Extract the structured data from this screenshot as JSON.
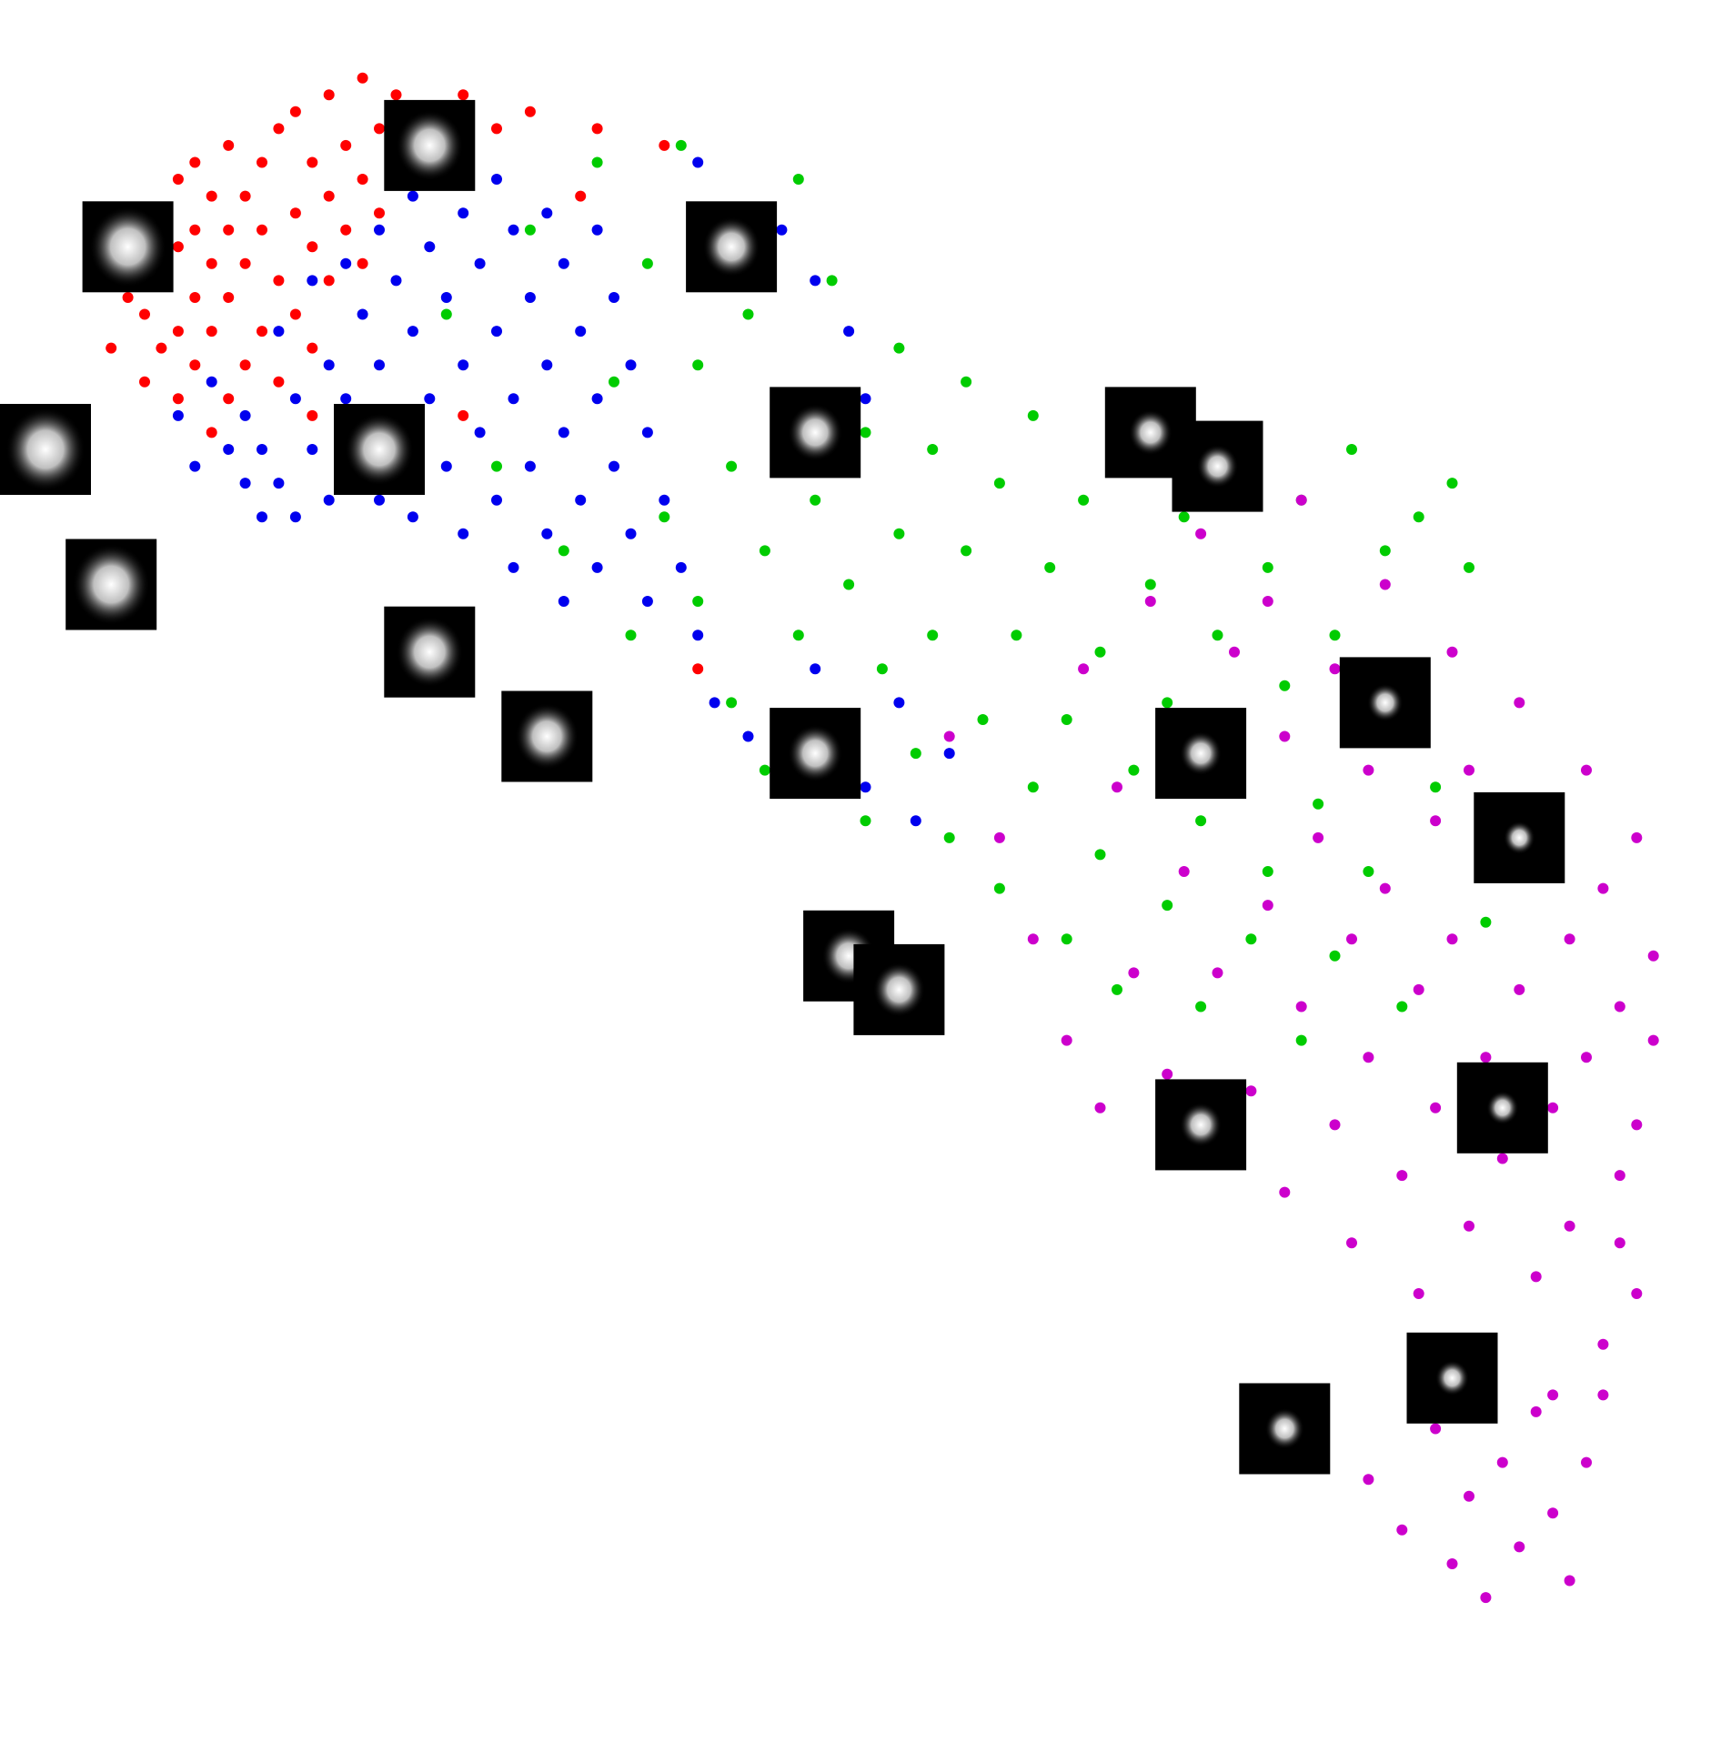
{
  "chart_data": {
    "type": "scatter",
    "title": "",
    "xlabel": "",
    "ylabel": "",
    "axes_visible": false,
    "grid": false,
    "legend": "none",
    "xlim": [
      0,
      1
    ],
    "ylim": [
      0,
      1
    ],
    "series": [
      {
        "color": "#ff0000",
        "points": [
          [
            0.05,
            0.81
          ],
          [
            0.06,
            0.84
          ],
          [
            0.06,
            0.88
          ],
          [
            0.07,
            0.79
          ],
          [
            0.07,
            0.83
          ],
          [
            0.07,
            0.86
          ],
          [
            0.08,
            0.81
          ],
          [
            0.08,
            0.85
          ],
          [
            0.08,
            0.89
          ],
          [
            0.09,
            0.78
          ],
          [
            0.09,
            0.82
          ],
          [
            0.09,
            0.87
          ],
          [
            0.09,
            0.91
          ],
          [
            0.1,
            0.8
          ],
          [
            0.1,
            0.84
          ],
          [
            0.1,
            0.88
          ],
          [
            0.1,
            0.92
          ],
          [
            0.11,
            0.76
          ],
          [
            0.11,
            0.82
          ],
          [
            0.11,
            0.86
          ],
          [
            0.11,
            0.9
          ],
          [
            0.12,
            0.78
          ],
          [
            0.12,
            0.84
          ],
          [
            0.12,
            0.88
          ],
          [
            0.12,
            0.93
          ],
          [
            0.13,
            0.8
          ],
          [
            0.13,
            0.86
          ],
          [
            0.13,
            0.9
          ],
          [
            0.14,
            0.82
          ],
          [
            0.14,
            0.88
          ],
          [
            0.14,
            0.92
          ],
          [
            0.15,
            0.79
          ],
          [
            0.15,
            0.85
          ],
          [
            0.15,
            0.94
          ],
          [
            0.16,
            0.83
          ],
          [
            0.16,
            0.89
          ],
          [
            0.16,
            0.95
          ],
          [
            0.17,
            0.81
          ],
          [
            0.17,
            0.87
          ],
          [
            0.17,
            0.92
          ],
          [
            0.18,
            0.85
          ],
          [
            0.18,
            0.9
          ],
          [
            0.18,
            0.96
          ],
          [
            0.19,
            0.88
          ],
          [
            0.19,
            0.93
          ],
          [
            0.2,
            0.86
          ],
          [
            0.2,
            0.91
          ],
          [
            0.2,
            0.97
          ],
          [
            0.21,
            0.89
          ],
          [
            0.21,
            0.94
          ],
          [
            0.22,
            0.92
          ],
          [
            0.22,
            0.96
          ],
          [
            0.23,
            0.95
          ],
          [
            0.24,
            0.93
          ],
          [
            0.25,
            0.95
          ],
          [
            0.26,
            0.96
          ],
          [
            0.28,
            0.94
          ],
          [
            0.3,
            0.95
          ],
          [
            0.34,
            0.94
          ],
          [
            0.38,
            0.93
          ],
          [
            0.26,
            0.77
          ],
          [
            0.4,
            0.62
          ],
          [
            0.19,
            0.75
          ],
          [
            0.17,
            0.77
          ],
          [
            0.33,
            0.9
          ]
        ]
      },
      {
        "color": "#0000ee",
        "points": [
          [
            0.09,
            0.77
          ],
          [
            0.1,
            0.74
          ],
          [
            0.11,
            0.79
          ],
          [
            0.12,
            0.75
          ],
          [
            0.13,
            0.73
          ],
          [
            0.13,
            0.77
          ],
          [
            0.14,
            0.71
          ],
          [
            0.14,
            0.75
          ],
          [
            0.15,
            0.82
          ],
          [
            0.15,
            0.73
          ],
          [
            0.16,
            0.78
          ],
          [
            0.16,
            0.71
          ],
          [
            0.17,
            0.85
          ],
          [
            0.17,
            0.75
          ],
          [
            0.18,
            0.8
          ],
          [
            0.18,
            0.72
          ],
          [
            0.19,
            0.86
          ],
          [
            0.19,
            0.78
          ],
          [
            0.2,
            0.83
          ],
          [
            0.2,
            0.74
          ],
          [
            0.21,
            0.88
          ],
          [
            0.21,
            0.8
          ],
          [
            0.21,
            0.72
          ],
          [
            0.22,
            0.85
          ],
          [
            0.22,
            0.76
          ],
          [
            0.23,
            0.9
          ],
          [
            0.23,
            0.82
          ],
          [
            0.23,
            0.71
          ],
          [
            0.24,
            0.87
          ],
          [
            0.24,
            0.78
          ],
          [
            0.25,
            0.92
          ],
          [
            0.25,
            0.84
          ],
          [
            0.25,
            0.74
          ],
          [
            0.26,
            0.89
          ],
          [
            0.26,
            0.8
          ],
          [
            0.26,
            0.7
          ],
          [
            0.27,
            0.86
          ],
          [
            0.27,
            0.76
          ],
          [
            0.28,
            0.91
          ],
          [
            0.28,
            0.82
          ],
          [
            0.28,
            0.72
          ],
          [
            0.29,
            0.88
          ],
          [
            0.29,
            0.78
          ],
          [
            0.29,
            0.68
          ],
          [
            0.3,
            0.84
          ],
          [
            0.3,
            0.74
          ],
          [
            0.31,
            0.89
          ],
          [
            0.31,
            0.8
          ],
          [
            0.31,
            0.7
          ],
          [
            0.32,
            0.86
          ],
          [
            0.32,
            0.76
          ],
          [
            0.32,
            0.66
          ],
          [
            0.33,
            0.82
          ],
          [
            0.33,
            0.72
          ],
          [
            0.34,
            0.88
          ],
          [
            0.34,
            0.78
          ],
          [
            0.34,
            0.68
          ],
          [
            0.35,
            0.84
          ],
          [
            0.35,
            0.74
          ],
          [
            0.36,
            0.8
          ],
          [
            0.36,
            0.7
          ],
          [
            0.37,
            0.76
          ],
          [
            0.37,
            0.66
          ],
          [
            0.38,
            0.72
          ],
          [
            0.39,
            0.68
          ],
          [
            0.4,
            0.64
          ],
          [
            0.41,
            0.6
          ],
          [
            0.43,
            0.58
          ],
          [
            0.45,
            0.56
          ],
          [
            0.47,
            0.62
          ],
          [
            0.48,
            0.58
          ],
          [
            0.5,
            0.55
          ],
          [
            0.52,
            0.6
          ],
          [
            0.53,
            0.53
          ],
          [
            0.55,
            0.57
          ],
          [
            0.45,
            0.88
          ],
          [
            0.47,
            0.85
          ],
          [
            0.49,
            0.82
          ],
          [
            0.5,
            0.78
          ],
          [
            0.4,
            0.92
          ]
        ]
      },
      {
        "color": "#00cc00",
        "points": [
          [
            0.25,
            0.83
          ],
          [
            0.28,
            0.74
          ],
          [
            0.3,
            0.88
          ],
          [
            0.32,
            0.69
          ],
          [
            0.34,
            0.92
          ],
          [
            0.35,
            0.79
          ],
          [
            0.36,
            0.64
          ],
          [
            0.37,
            0.86
          ],
          [
            0.38,
            0.71
          ],
          [
            0.39,
            0.93
          ],
          [
            0.4,
            0.8
          ],
          [
            0.4,
            0.66
          ],
          [
            0.41,
            0.88
          ],
          [
            0.42,
            0.74
          ],
          [
            0.42,
            0.6
          ],
          [
            0.43,
            0.83
          ],
          [
            0.44,
            0.69
          ],
          [
            0.44,
            0.56
          ],
          [
            0.45,
            0.78
          ],
          [
            0.46,
            0.64
          ],
          [
            0.46,
            0.91
          ],
          [
            0.47,
            0.72
          ],
          [
            0.48,
            0.58
          ],
          [
            0.48,
            0.85
          ],
          [
            0.49,
            0.67
          ],
          [
            0.5,
            0.76
          ],
          [
            0.5,
            0.53
          ],
          [
            0.51,
            0.62
          ],
          [
            0.52,
            0.81
          ],
          [
            0.52,
            0.7
          ],
          [
            0.53,
            0.57
          ],
          [
            0.54,
            0.75
          ],
          [
            0.54,
            0.64
          ],
          [
            0.55,
            0.52
          ],
          [
            0.56,
            0.69
          ],
          [
            0.56,
            0.79
          ],
          [
            0.57,
            0.59
          ],
          [
            0.58,
            0.73
          ],
          [
            0.58,
            0.49
          ],
          [
            0.59,
            0.64
          ],
          [
            0.6,
            0.77
          ],
          [
            0.6,
            0.55
          ],
          [
            0.61,
            0.68
          ],
          [
            0.62,
            0.46
          ],
          [
            0.62,
            0.59
          ],
          [
            0.63,
            0.72
          ],
          [
            0.64,
            0.51
          ],
          [
            0.64,
            0.63
          ],
          [
            0.65,
            0.43
          ],
          [
            0.66,
            0.56
          ],
          [
            0.66,
            0.75
          ],
          [
            0.67,
            0.67
          ],
          [
            0.68,
            0.48
          ],
          [
            0.68,
            0.6
          ],
          [
            0.69,
            0.71
          ],
          [
            0.7,
            0.53
          ],
          [
            0.7,
            0.42
          ],
          [
            0.71,
            0.64
          ],
          [
            0.72,
            0.74
          ],
          [
            0.72,
            0.57
          ],
          [
            0.73,
            0.46
          ],
          [
            0.74,
            0.68
          ],
          [
            0.74,
            0.5
          ],
          [
            0.75,
            0.61
          ],
          [
            0.76,
            0.4
          ],
          [
            0.76,
            0.72
          ],
          [
            0.77,
            0.54
          ],
          [
            0.78,
            0.64
          ],
          [
            0.78,
            0.45
          ],
          [
            0.79,
            0.75
          ],
          [
            0.79,
            0.58
          ],
          [
            0.8,
            0.5
          ],
          [
            0.81,
            0.69
          ],
          [
            0.81,
            0.62
          ],
          [
            0.82,
            0.42
          ],
          [
            0.83,
            0.71
          ],
          [
            0.84,
            0.55
          ],
          [
            0.85,
            0.73
          ],
          [
            0.86,
            0.68
          ],
          [
            0.87,
            0.47
          ]
        ]
      },
      {
        "color": "#cc00cc",
        "points": [
          [
            0.55,
            0.58
          ],
          [
            0.58,
            0.52
          ],
          [
            0.6,
            0.46
          ],
          [
            0.62,
            0.4
          ],
          [
            0.63,
            0.62
          ],
          [
            0.64,
            0.36
          ],
          [
            0.65,
            0.55
          ],
          [
            0.66,
            0.44
          ],
          [
            0.67,
            0.66
          ],
          [
            0.68,
            0.38
          ],
          [
            0.68,
            0.59
          ],
          [
            0.69,
            0.5
          ],
          [
            0.7,
            0.33
          ],
          [
            0.7,
            0.7
          ],
          [
            0.71,
            0.44
          ],
          [
            0.72,
            0.63
          ],
          [
            0.72,
            0.55
          ],
          [
            0.73,
            0.37
          ],
          [
            0.74,
            0.48
          ],
          [
            0.74,
            0.66
          ],
          [
            0.75,
            0.31
          ],
          [
            0.75,
            0.58
          ],
          [
            0.76,
            0.42
          ],
          [
            0.76,
            0.72
          ],
          [
            0.77,
            0.52
          ],
          [
            0.78,
            0.35
          ],
          [
            0.78,
            0.62
          ],
          [
            0.79,
            0.46
          ],
          [
            0.79,
            0.28
          ],
          [
            0.8,
            0.56
          ],
          [
            0.8,
            0.39
          ],
          [
            0.81,
            0.67
          ],
          [
            0.81,
            0.49
          ],
          [
            0.82,
            0.32
          ],
          [
            0.82,
            0.59
          ],
          [
            0.83,
            0.43
          ],
          [
            0.83,
            0.25
          ],
          [
            0.84,
            0.53
          ],
          [
            0.84,
            0.36
          ],
          [
            0.85,
            0.63
          ],
          [
            0.85,
            0.46
          ],
          [
            0.86,
            0.29
          ],
          [
            0.86,
            0.56
          ],
          [
            0.87,
            0.39
          ],
          [
            0.87,
            0.22
          ],
          [
            0.88,
            0.5
          ],
          [
            0.88,
            0.33
          ],
          [
            0.89,
            0.6
          ],
          [
            0.89,
            0.43
          ],
          [
            0.9,
            0.26
          ],
          [
            0.9,
            0.53
          ],
          [
            0.91,
            0.36
          ],
          [
            0.91,
            0.19
          ],
          [
            0.92,
            0.46
          ],
          [
            0.92,
            0.29
          ],
          [
            0.93,
            0.56
          ],
          [
            0.93,
            0.39
          ],
          [
            0.94,
            0.22
          ],
          [
            0.94,
            0.49
          ],
          [
            0.95,
            0.32
          ],
          [
            0.95,
            0.42
          ],
          [
            0.96,
            0.25
          ],
          [
            0.96,
            0.52
          ],
          [
            0.8,
            0.14
          ],
          [
            0.82,
            0.11
          ],
          [
            0.84,
            0.17
          ],
          [
            0.85,
            0.09
          ],
          [
            0.86,
            0.13
          ],
          [
            0.87,
            0.07
          ],
          [
            0.88,
            0.15
          ],
          [
            0.89,
            0.1
          ],
          [
            0.9,
            0.18
          ],
          [
            0.91,
            0.12
          ],
          [
            0.92,
            0.08
          ],
          [
            0.93,
            0.15
          ],
          [
            0.94,
            0.19
          ],
          [
            0.95,
            0.28
          ],
          [
            0.96,
            0.35
          ],
          [
            0.97,
            0.45
          ],
          [
            0.97,
            0.4
          ]
        ]
      }
    ],
    "thumbnails": [
      [
        0.24,
        0.93
      ],
      [
        0.06,
        0.87
      ],
      [
        0.01,
        0.75
      ],
      [
        0.05,
        0.67
      ],
      [
        0.42,
        0.87
      ],
      [
        0.21,
        0.75
      ],
      [
        0.24,
        0.63
      ],
      [
        0.31,
        0.58
      ],
      [
        0.47,
        0.76
      ],
      [
        0.47,
        0.57
      ],
      [
        0.67,
        0.76
      ],
      [
        0.71,
        0.74
      ],
      [
        0.81,
        0.6
      ],
      [
        0.7,
        0.57
      ],
      [
        0.89,
        0.52
      ],
      [
        0.49,
        0.45
      ],
      [
        0.52,
        0.43
      ],
      [
        0.7,
        0.35
      ],
      [
        0.88,
        0.36
      ],
      [
        0.85,
        0.2
      ],
      [
        0.75,
        0.17
      ]
    ]
  }
}
